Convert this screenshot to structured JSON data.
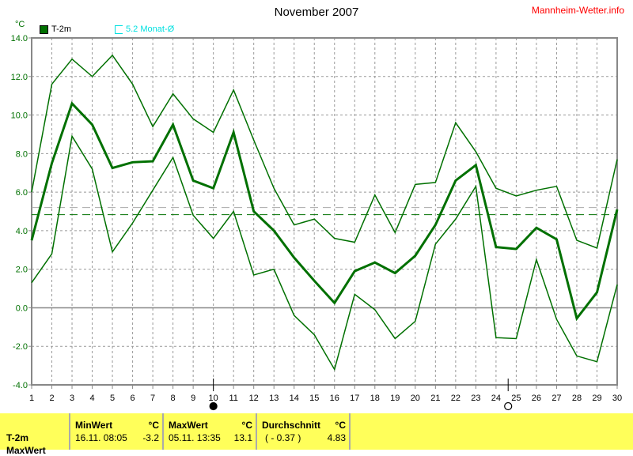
{
  "header": {
    "title": "November 2007",
    "brand": "Mannheim-Wetter.info",
    "unit": "°C"
  },
  "legend": [
    {
      "label": "T-2m",
      "color": "#007000"
    },
    {
      "label": "5.2 Monat-Ø",
      "color": "#00e0e0"
    }
  ],
  "chart_data": {
    "type": "line",
    "title": "November 2007",
    "ylabel": "°C",
    "x": [
      1,
      2,
      3,
      4,
      5,
      6,
      7,
      8,
      9,
      10,
      11,
      12,
      13,
      14,
      15,
      16,
      17,
      18,
      19,
      20,
      21,
      22,
      23,
      24,
      25,
      26,
      27,
      28,
      29,
      30
    ],
    "xlim": [
      1,
      30
    ],
    "ylim": [
      -4,
      14
    ],
    "yticks": [
      "14.0",
      "12.0",
      "10.0",
      "8.0",
      "6.0",
      "4.0",
      "2.0",
      "0.0",
      "-2.0",
      "-4.0"
    ],
    "grid": true,
    "series": [
      {
        "role": "max",
        "values": [
          6.0,
          11.6,
          12.9,
          12.0,
          13.1,
          11.6,
          9.4,
          11.1,
          9.8,
          9.1,
          11.3,
          8.7,
          6.2,
          4.3,
          4.6,
          3.6,
          3.4,
          5.85,
          3.9,
          6.4,
          6.5,
          9.6,
          8.1,
          6.2,
          5.8,
          6.1,
          6.3,
          3.5,
          3.1,
          7.7
        ]
      },
      {
        "name": "T-2m",
        "role": "mean",
        "values": [
          3.5,
          7.5,
          10.6,
          9.5,
          7.25,
          7.55,
          7.6,
          9.5,
          6.6,
          6.2,
          9.1,
          5.0,
          4.0,
          2.6,
          1.4,
          0.25,
          1.9,
          2.35,
          1.8,
          2.7,
          4.3,
          6.6,
          7.4,
          3.15,
          3.05,
          4.15,
          3.55,
          -0.55,
          0.8,
          5.1
        ]
      },
      {
        "role": "min",
        "values": [
          1.3,
          2.8,
          8.9,
          7.2,
          2.9,
          4.4,
          6.1,
          7.8,
          4.8,
          3.6,
          5.0,
          1.7,
          2.0,
          -0.4,
          -1.4,
          -3.2,
          0.7,
          -0.1,
          -1.6,
          -0.7,
          3.3,
          4.6,
          6.3,
          -1.55,
          -1.6,
          2.5,
          -0.6,
          -2.5,
          -2.8,
          1.2
        ]
      }
    ],
    "reference_lines": [
      {
        "value": 4.83,
        "color": "#007000"
      },
      {
        "value": 5.2,
        "color": "#aaaaaa"
      }
    ],
    "moon_phases": [
      {
        "day": 10,
        "phase": "new-moon"
      },
      {
        "day": 24.6,
        "phase": "full-moon"
      }
    ]
  },
  "stats": {
    "row_label": "T-2m",
    "row2_label": "MaxWert",
    "min": {
      "header": "MinWert",
      "unit": "°C",
      "date": "16.11.  08:05",
      "value": "-3.2"
    },
    "max": {
      "header": "MaxWert",
      "unit": "°C",
      "date": "05.11.  13:35",
      "value": "13.1"
    },
    "avg": {
      "header": "Durchschnitt",
      "unit": "°C",
      "dev": "( - 0.37 )",
      "value": "4.83"
    }
  }
}
